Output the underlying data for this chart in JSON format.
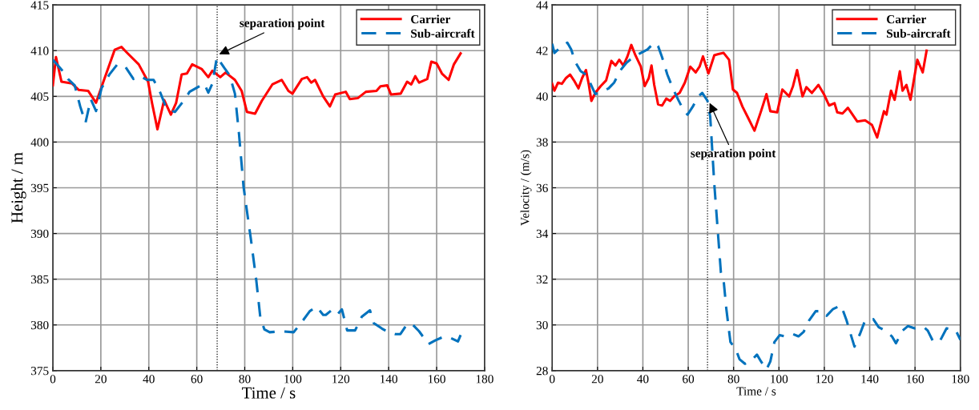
{
  "chart_data": [
    {
      "type": "line",
      "xlabel": "Time / s",
      "ylabel": "Height / m",
      "xlim": [
        0,
        180
      ],
      "ylim": [
        375,
        415
      ],
      "xticks": [
        0,
        20,
        40,
        60,
        80,
        100,
        120,
        140,
        160,
        180
      ],
      "yticks": [
        375,
        380,
        385,
        390,
        395,
        400,
        405,
        410,
        415
      ],
      "grid": true,
      "legend": "top right",
      "ref_lines": [
        {
          "axis": "x",
          "value": 68.5,
          "color": "#000000",
          "line_style": "dotted"
        }
      ],
      "annotations": [
        {
          "text": "separation point",
          "x": 68.5,
          "y": 409.5
        }
      ],
      "series": [
        {
          "name": "Carrier",
          "color": "#ff0000",
          "line_style": "solid",
          "x": [
            0,
            1.3,
            3.6,
            8,
            10.8,
            14.7,
            18,
            20.8,
            25.8,
            28.6,
            30.8,
            35.8,
            39.7,
            41.4,
            43.6,
            46.4,
            49.2,
            51.4,
            53.7,
            55.9,
            58.1,
            62,
            64.8,
            66.5,
            69.8,
            72,
            75.9,
            78.7,
            80.9,
            84.3,
            87.1,
            91.5,
            95.4,
            98.2,
            99.9,
            103.8,
            106,
            107.7,
            109.3,
            112.7,
            115.5,
            117.7,
            122.1,
            123.8,
            127.1,
            130.5,
            134.9,
            136.6,
            139.4,
            141,
            145,
            147.7,
            149.4,
            151.1,
            152.7,
            156.1,
            157.8,
            160,
            162.2,
            165,
            167.2,
            170
          ],
          "values": [
            406.2,
            409.3,
            406.6,
            406.4,
            405.7,
            405.6,
            404.3,
            406.4,
            410.1,
            410.4,
            409.8,
            408.5,
            406.6,
            404.2,
            401.4,
            404.6,
            403.0,
            404.3,
            407.4,
            407.5,
            408.5,
            408.0,
            407.1,
            407.8,
            407.1,
            407.6,
            406.8,
            405.6,
            403.3,
            403.1,
            404.5,
            406.3,
            406.8,
            405.6,
            405.3,
            406.9,
            407.1,
            406.5,
            406.8,
            405.0,
            403.9,
            405.2,
            405.5,
            404.7,
            404.8,
            405.5,
            405.6,
            406.1,
            406.2,
            405.2,
            405.3,
            406.6,
            406.3,
            407.2,
            406.5,
            406.9,
            408.8,
            408.6,
            407.5,
            406.8,
            408.5,
            409.7
          ]
        },
        {
          "name": "Sub-aircraft",
          "color": "#0072bd",
          "line_style": "dashed",
          "x": [
            0,
            1.7,
            4.7,
            6.3,
            9.1,
            11.4,
            13.6,
            15.8,
            18,
            20.3,
            23.6,
            26.9,
            30.3,
            33.6,
            36.4,
            39.2,
            42,
            44.8,
            47.5,
            50.9,
            54.8,
            57,
            60.4,
            63.1,
            64.8,
            66.5,
            68.4,
            71.5,
            73.7,
            75.9,
            77.6,
            79.5,
            82.6,
            84.8,
            86.5,
            88.2,
            90.4,
            94.9,
            100.4,
            104.3,
            107.1,
            109.9,
            112.7,
            113.8,
            116.6,
            118.8,
            120.5,
            122.7,
            126,
            128.8,
            132.2,
            133.8,
            137.2,
            140,
            142.7,
            144.9,
            147.2,
            149.4,
            152.7,
            156.6,
            159.4,
            162.8,
            165.6,
            168.9,
            170
          ],
          "values": [
            409.0,
            408.5,
            407.6,
            406.9,
            406.2,
            403.9,
            402.1,
            404.7,
            403.4,
            405.9,
            407.4,
            408.5,
            408.2,
            406.9,
            407.2,
            406.8,
            406.8,
            405.4,
            403.6,
            403.3,
            404.6,
            405.5,
            406.0,
            406.4,
            405.4,
            406.4,
            409.3,
            408.1,
            407.3,
            405.3,
            400.9,
            395.1,
            389.3,
            384.9,
            380.8,
            379.5,
            379.2,
            379.3,
            379.2,
            380.5,
            381.5,
            382.0,
            381.1,
            381.1,
            381.7,
            381.2,
            381.7,
            379.4,
            379.4,
            380.9,
            381.6,
            380.2,
            379.6,
            379.2,
            379.0,
            379.0,
            379.9,
            380.2,
            379.3,
            377.9,
            378.3,
            378.7,
            378.6,
            378.2,
            378.9
          ]
        }
      ]
    },
    {
      "type": "line",
      "xlabel": "Time / s",
      "ylabel": "Velocity / (m/s)",
      "xlim": [
        0,
        180
      ],
      "ylim": [
        28,
        44
      ],
      "xticks": [
        0,
        20,
        40,
        60,
        80,
        100,
        120,
        140,
        160,
        180
      ],
      "yticks": [
        28,
        30,
        32,
        34,
        36,
        38,
        40,
        42,
        44
      ],
      "grid": true,
      "legend": "top right",
      "ref_lines": [
        {
          "axis": "x",
          "value": 68.5,
          "color": "#000000",
          "line_style": "dotted"
        }
      ],
      "annotations": [
        {
          "text": "separation point",
          "x": 69,
          "y": 39.8
        }
      ],
      "series": [
        {
          "name": "Carrier",
          "color": "#ff0000",
          "line_style": "solid",
          "x": [
            0,
            1,
            2.6,
            4.3,
            6.1,
            7.9,
            9.6,
            11.6,
            13.2,
            14.9,
            16.1,
            17.3,
            19,
            21.4,
            23.8,
            26.1,
            27.9,
            29.6,
            31.4,
            33.2,
            34.9,
            36.7,
            39.1,
            40.8,
            42.6,
            43.8,
            45,
            46.7,
            48.5,
            50.3,
            52,
            53.8,
            56.2,
            58.5,
            60.9,
            63.3,
            65,
            66.5,
            68.9,
            71.5,
            73.3,
            75.6,
            78,
            79.7,
            81.5,
            83.9,
            86.2,
            89.2,
            92.1,
            94.5,
            96.2,
            99.2,
            101.5,
            104.5,
            106.2,
            108,
            110.4,
            112.1,
            114.5,
            117.4,
            119.8,
            122.1,
            124.5,
            125.7,
            128,
            130.4,
            134.5,
            138,
            141,
            143.3,
            146.3,
            147.4,
            149.4,
            151,
            153.3,
            154.5,
            156.2,
            158,
            161,
            163.4,
            165.1
          ],
          "values": [
            40.55,
            40.25,
            40.6,
            40.55,
            40.8,
            40.95,
            40.7,
            40.35,
            40.8,
            41.15,
            40.55,
            39.8,
            40.15,
            40.45,
            40.7,
            41.55,
            41.35,
            41.6,
            41.35,
            41.75,
            42.25,
            41.8,
            41.3,
            40.45,
            40.8,
            41.35,
            40.5,
            39.65,
            39.6,
            39.9,
            39.8,
            40.0,
            40.15,
            40.6,
            41.3,
            41.05,
            41.3,
            41.75,
            41.0,
            41.8,
            41.85,
            41.9,
            41.6,
            40.3,
            40.15,
            39.55,
            39.1,
            38.5,
            39.35,
            40.1,
            39.35,
            39.3,
            40.3,
            40.0,
            40.45,
            41.15,
            40.0,
            40.4,
            40.15,
            40.5,
            40.1,
            39.6,
            39.7,
            39.3,
            39.25,
            39.5,
            38.9,
            38.95,
            38.75,
            38.2,
            39.35,
            39.2,
            40.25,
            39.85,
            41.1,
            40.25,
            40.5,
            39.85,
            41.6,
            41.05,
            42.0
          ]
        },
        {
          "name": "Sub-aircraft",
          "color": "#0072bd",
          "line_style": "dashed",
          "x": [
            0,
            1,
            4.3,
            6.7,
            8.4,
            10.2,
            12.6,
            15,
            16.7,
            19,
            22,
            24.9,
            27.3,
            30.2,
            32.6,
            36.1,
            39.1,
            42,
            45,
            46.7,
            48.5,
            50.8,
            53.2,
            55.6,
            57.9,
            59.7,
            62,
            64.4,
            66.2,
            68.5,
            69.7,
            71.5,
            73.3,
            74.4,
            75.6,
            76.8,
            78.6,
            80.9,
            82.6,
            85,
            87.9,
            90.3,
            92.1,
            94.5,
            96.2,
            98,
            100.3,
            102.6,
            106.2,
            108.6,
            110.9,
            113.3,
            116.2,
            119.2,
            121,
            123.9,
            127.4,
            129.8,
            131.6,
            133.3,
            135.7,
            138,
            141.6,
            144,
            146.9,
            149.8,
            151.6,
            154.5,
            156.9,
            159.8,
            163.9,
            165.6,
            168.1,
            171,
            173.9,
            178,
            180
          ],
          "values": [
            42.3,
            41.9,
            42.2,
            42.35,
            42.05,
            41.5,
            41.1,
            40.95,
            40.6,
            40.1,
            40.2,
            40.35,
            40.6,
            41.15,
            41.45,
            41.75,
            41.9,
            42.05,
            42.35,
            42.2,
            41.7,
            40.95,
            40.35,
            39.85,
            39.4,
            39.2,
            39.55,
            40.0,
            40.15,
            39.8,
            39.1,
            36.15,
            33.75,
            32.3,
            31.95,
            30.7,
            29.25,
            28.95,
            28.5,
            28.3,
            28.45,
            28.7,
            28.4,
            28.05,
            28.4,
            29.25,
            29.55,
            29.5,
            29.6,
            29.5,
            29.7,
            30.2,
            30.6,
            30.6,
            30.4,
            30.7,
            30.85,
            30.2,
            29.6,
            29.05,
            29.6,
            30.2,
            30.25,
            29.9,
            29.75,
            29.5,
            29.2,
            29.75,
            29.95,
            29.85,
            29.9,
            29.75,
            29.25,
            29.3,
            29.85,
            29.75,
            29.35
          ]
        }
      ]
    }
  ]
}
